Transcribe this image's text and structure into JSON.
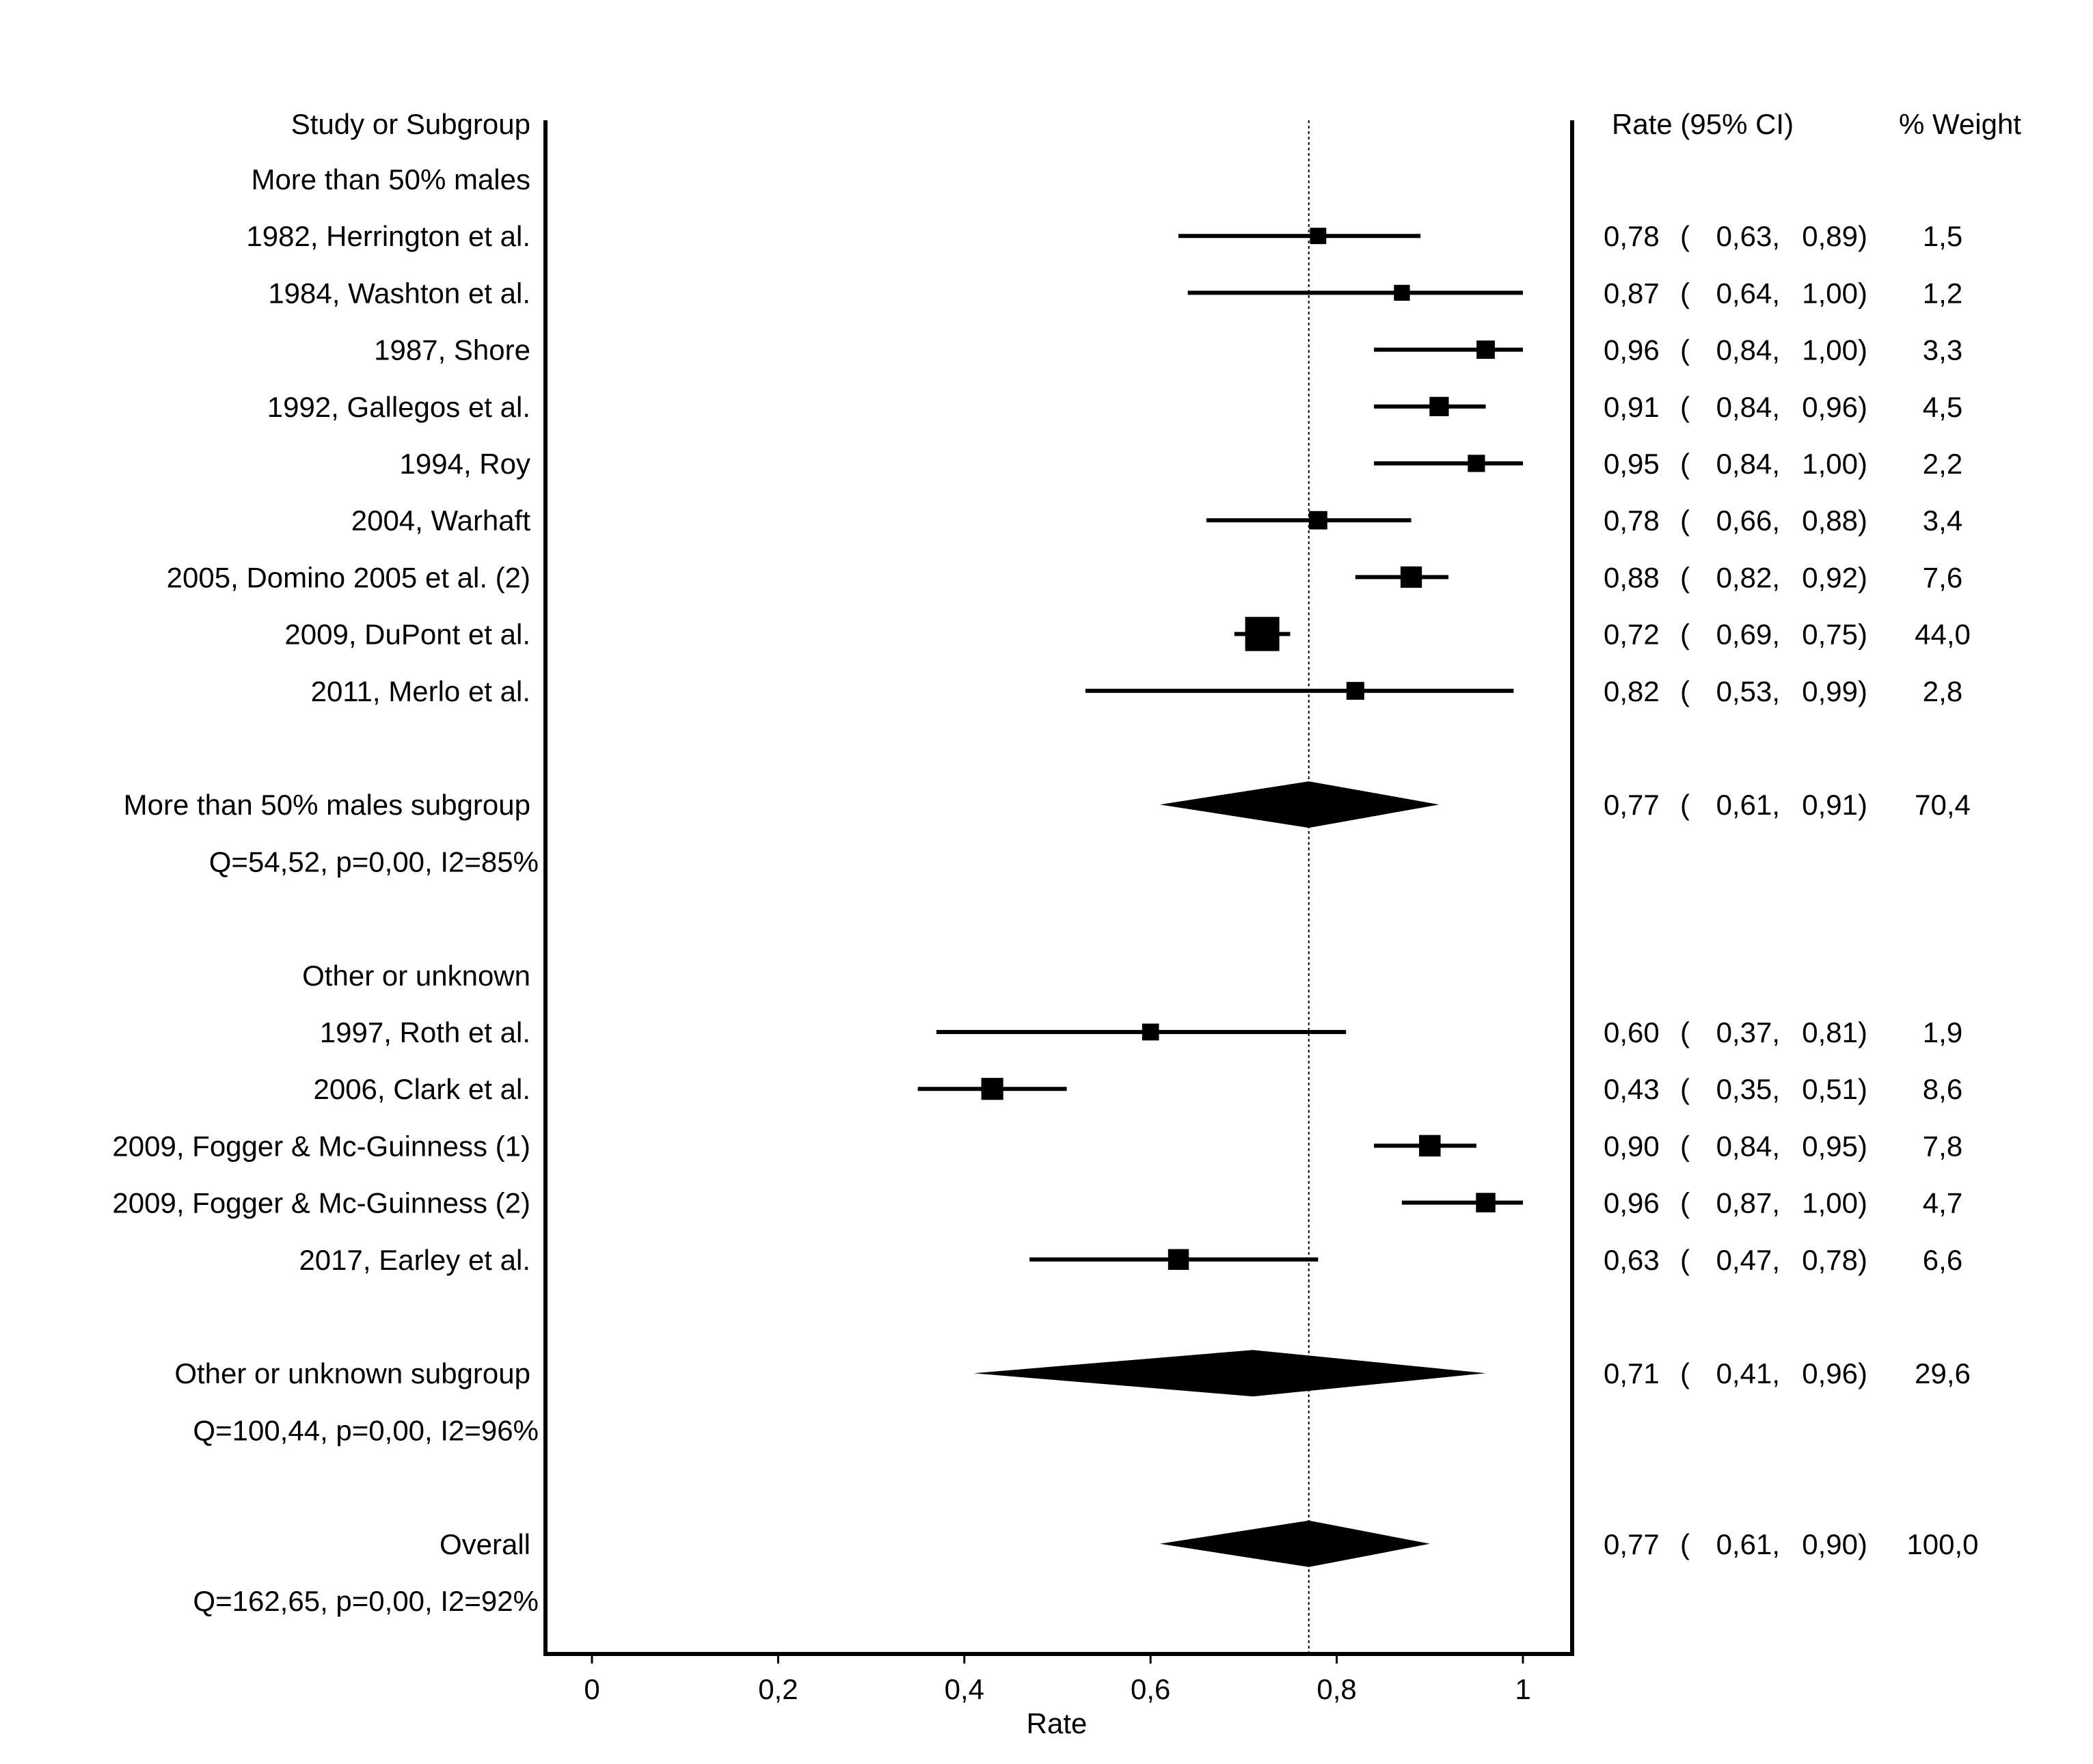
{
  "chart_data": {
    "type": "forest",
    "xlabel": "Rate",
    "xlim": [
      -0.05,
      1.05
    ],
    "xticks": [
      0,
      0.2,
      0.4,
      0.6,
      0.8,
      1
    ],
    "xtick_labels": [
      "0",
      "0,2",
      "0,4",
      "0,6",
      "0,8",
      "1"
    ],
    "reference_line": 0.77,
    "headers": {
      "study": "Study or Subgroup",
      "rate": "Rate (95% CI)",
      "weight": "% Weight"
    },
    "rows": [
      {
        "label": "More than 50% males",
        "kind": "group"
      },
      {
        "label": "1982, Herrington et al.",
        "kind": "study",
        "rate": 0.78,
        "lo": 0.63,
        "hi": 0.89,
        "weight": 1.5,
        "rate_text": "0,78",
        "lo_text": "0,63,",
        "hi_text": "0,89)",
        "weight_text": "1,5"
      },
      {
        "label": "1984, Washton et al.",
        "kind": "study",
        "rate": 0.87,
        "lo": 0.64,
        "hi": 1.0,
        "weight": 1.2,
        "rate_text": "0,87",
        "lo_text": "0,64,",
        "hi_text": "1,00)",
        "weight_text": "1,2"
      },
      {
        "label": "1987, Shore",
        "kind": "study",
        "rate": 0.96,
        "lo": 0.84,
        "hi": 1.0,
        "weight": 3.3,
        "rate_text": "0,96",
        "lo_text": "0,84,",
        "hi_text": "1,00)",
        "weight_text": "3,3"
      },
      {
        "label": "1992, Gallegos et al.",
        "kind": "study",
        "rate": 0.91,
        "lo": 0.84,
        "hi": 0.96,
        "weight": 4.5,
        "rate_text": "0,91",
        "lo_text": "0,84,",
        "hi_text": "0,96)",
        "weight_text": "4,5"
      },
      {
        "label": "1994, Roy",
        "kind": "study",
        "rate": 0.95,
        "lo": 0.84,
        "hi": 1.0,
        "weight": 2.2,
        "rate_text": "0,95",
        "lo_text": "0,84,",
        "hi_text": "1,00)",
        "weight_text": "2,2"
      },
      {
        "label": "2004, Warhaft",
        "kind": "study",
        "rate": 0.78,
        "lo": 0.66,
        "hi": 0.88,
        "weight": 3.4,
        "rate_text": "0,78",
        "lo_text": "0,66,",
        "hi_text": "0,88)",
        "weight_text": "3,4"
      },
      {
        "label": "2005, Domino 2005 et al. (2)",
        "kind": "study",
        "rate": 0.88,
        "lo": 0.82,
        "hi": 0.92,
        "weight": 7.6,
        "rate_text": "0,88",
        "lo_text": "0,82,",
        "hi_text": "0,92)",
        "weight_text": "7,6"
      },
      {
        "label": "2009, DuPont et al.",
        "kind": "study",
        "rate": 0.72,
        "lo": 0.69,
        "hi": 0.75,
        "weight": 44.0,
        "rate_text": "0,72",
        "lo_text": "0,69,",
        "hi_text": "0,75)",
        "weight_text": "44,0"
      },
      {
        "label": "2011, Merlo et al.",
        "kind": "study",
        "rate": 0.82,
        "lo": 0.53,
        "hi": 0.99,
        "weight": 2.8,
        "rate_text": "0,82",
        "lo_text": "0,53,",
        "hi_text": "0,99)",
        "weight_text": "2,8"
      },
      {
        "kind": "blank"
      },
      {
        "label": "More than 50% males subgroup",
        "kind": "pooled",
        "rate": 0.77,
        "lo": 0.61,
        "hi": 0.91,
        "weight": 70.4,
        "rate_text": "0,77",
        "lo_text": "0,61,",
        "hi_text": "0,91)",
        "weight_text": "70,4"
      },
      {
        "label": "Q=54,52, p=0,00, I2=85%",
        "kind": "stat"
      },
      {
        "kind": "blank"
      },
      {
        "label": "Other or unknown",
        "kind": "group"
      },
      {
        "label": "1997, Roth et al.",
        "kind": "study",
        "rate": 0.6,
        "lo": 0.37,
        "hi": 0.81,
        "weight": 1.9,
        "rate_text": "0,60",
        "lo_text": "0,37,",
        "hi_text": "0,81)",
        "weight_text": "1,9"
      },
      {
        "label": "2006, Clark et al.",
        "kind": "study",
        "rate": 0.43,
        "lo": 0.35,
        "hi": 0.51,
        "weight": 8.6,
        "rate_text": "0,43",
        "lo_text": "0,35,",
        "hi_text": "0,51)",
        "weight_text": "8,6"
      },
      {
        "label": "2009, Fogger & Mc-Guinness (1)",
        "kind": "study",
        "rate": 0.9,
        "lo": 0.84,
        "hi": 0.95,
        "weight": 7.8,
        "rate_text": "0,90",
        "lo_text": "0,84,",
        "hi_text": "0,95)",
        "weight_text": "7,8"
      },
      {
        "label": "2009, Fogger & Mc-Guinness (2)",
        "kind": "study",
        "rate": 0.96,
        "lo": 0.87,
        "hi": 1.0,
        "weight": 4.7,
        "rate_text": "0,96",
        "lo_text": "0,87,",
        "hi_text": "1,00)",
        "weight_text": "4,7"
      },
      {
        "label": "2017, Earley et al.",
        "kind": "study",
        "rate": 0.63,
        "lo": 0.47,
        "hi": 0.78,
        "weight": 6.6,
        "rate_text": "0,63",
        "lo_text": "0,47,",
        "hi_text": "0,78)",
        "weight_text": "6,6"
      },
      {
        "kind": "blank"
      },
      {
        "label": "Other or unknown subgroup",
        "kind": "pooled",
        "rate": 0.71,
        "lo": 0.41,
        "hi": 0.96,
        "weight": 29.6,
        "rate_text": "0,71",
        "lo_text": "0,41,",
        "hi_text": "0,96)",
        "weight_text": "29,6"
      },
      {
        "label": "Q=100,44, p=0,00, I2=96%",
        "kind": "stat"
      },
      {
        "kind": "blank"
      },
      {
        "label": "Overall",
        "kind": "pooled",
        "rate": 0.77,
        "lo": 0.61,
        "hi": 0.9,
        "weight": 100.0,
        "rate_text": "0,77",
        "lo_text": "0,61,",
        "hi_text": "0,90)",
        "weight_text": "100,0"
      },
      {
        "label": "Q=162,65, p=0,00, I2=92%",
        "kind": "stat"
      }
    ]
  }
}
